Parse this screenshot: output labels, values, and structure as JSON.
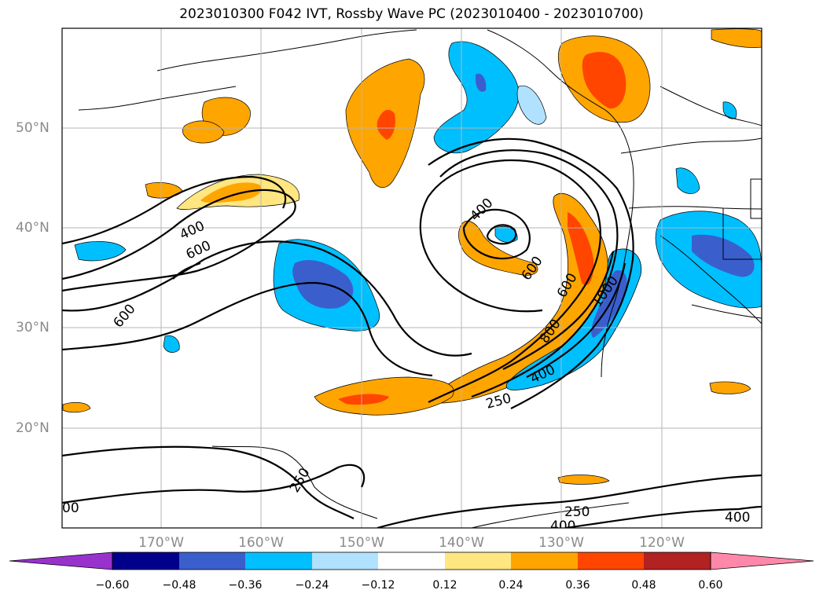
{
  "title": "2023010300 F042 IVT, Rossby Wave PC (2023010400 - 2023010700)",
  "lat_labels": [
    "50°N",
    "40°N",
    "30°N",
    "20°N"
  ],
  "lon_labels": [
    "170°W",
    "160°W",
    "150°W",
    "140°W",
    "130°W",
    "120°W"
  ],
  "contour_labels": [
    "400",
    "600",
    "600",
    "400",
    "600",
    "800",
    "600",
    "1000",
    "400",
    "250",
    "250",
    "400",
    "250",
    "400",
    "00"
  ],
  "colorbar": {
    "ticks": [
      "−0.60",
      "−0.48",
      "−0.36",
      "−0.24",
      "−0.12",
      "0.12",
      "0.24",
      "0.36",
      "0.48",
      "0.60"
    ],
    "colors": [
      "#9932cc",
      "#00008b",
      "#3a5fcd",
      "#00bfff",
      "#b0e2ff",
      "#ffffff",
      "#ffe680",
      "#ffa500",
      "#ff4500",
      "#b22222",
      "#ff88aa"
    ]
  },
  "colors": {
    "positive_low": "#ffe680",
    "positive_mid": "#ffa500",
    "positive_high": "#ff4500",
    "negative_low": "#b0e2ff",
    "negative_mid": "#00bfff",
    "negative_high": "#3a5fcd"
  }
}
